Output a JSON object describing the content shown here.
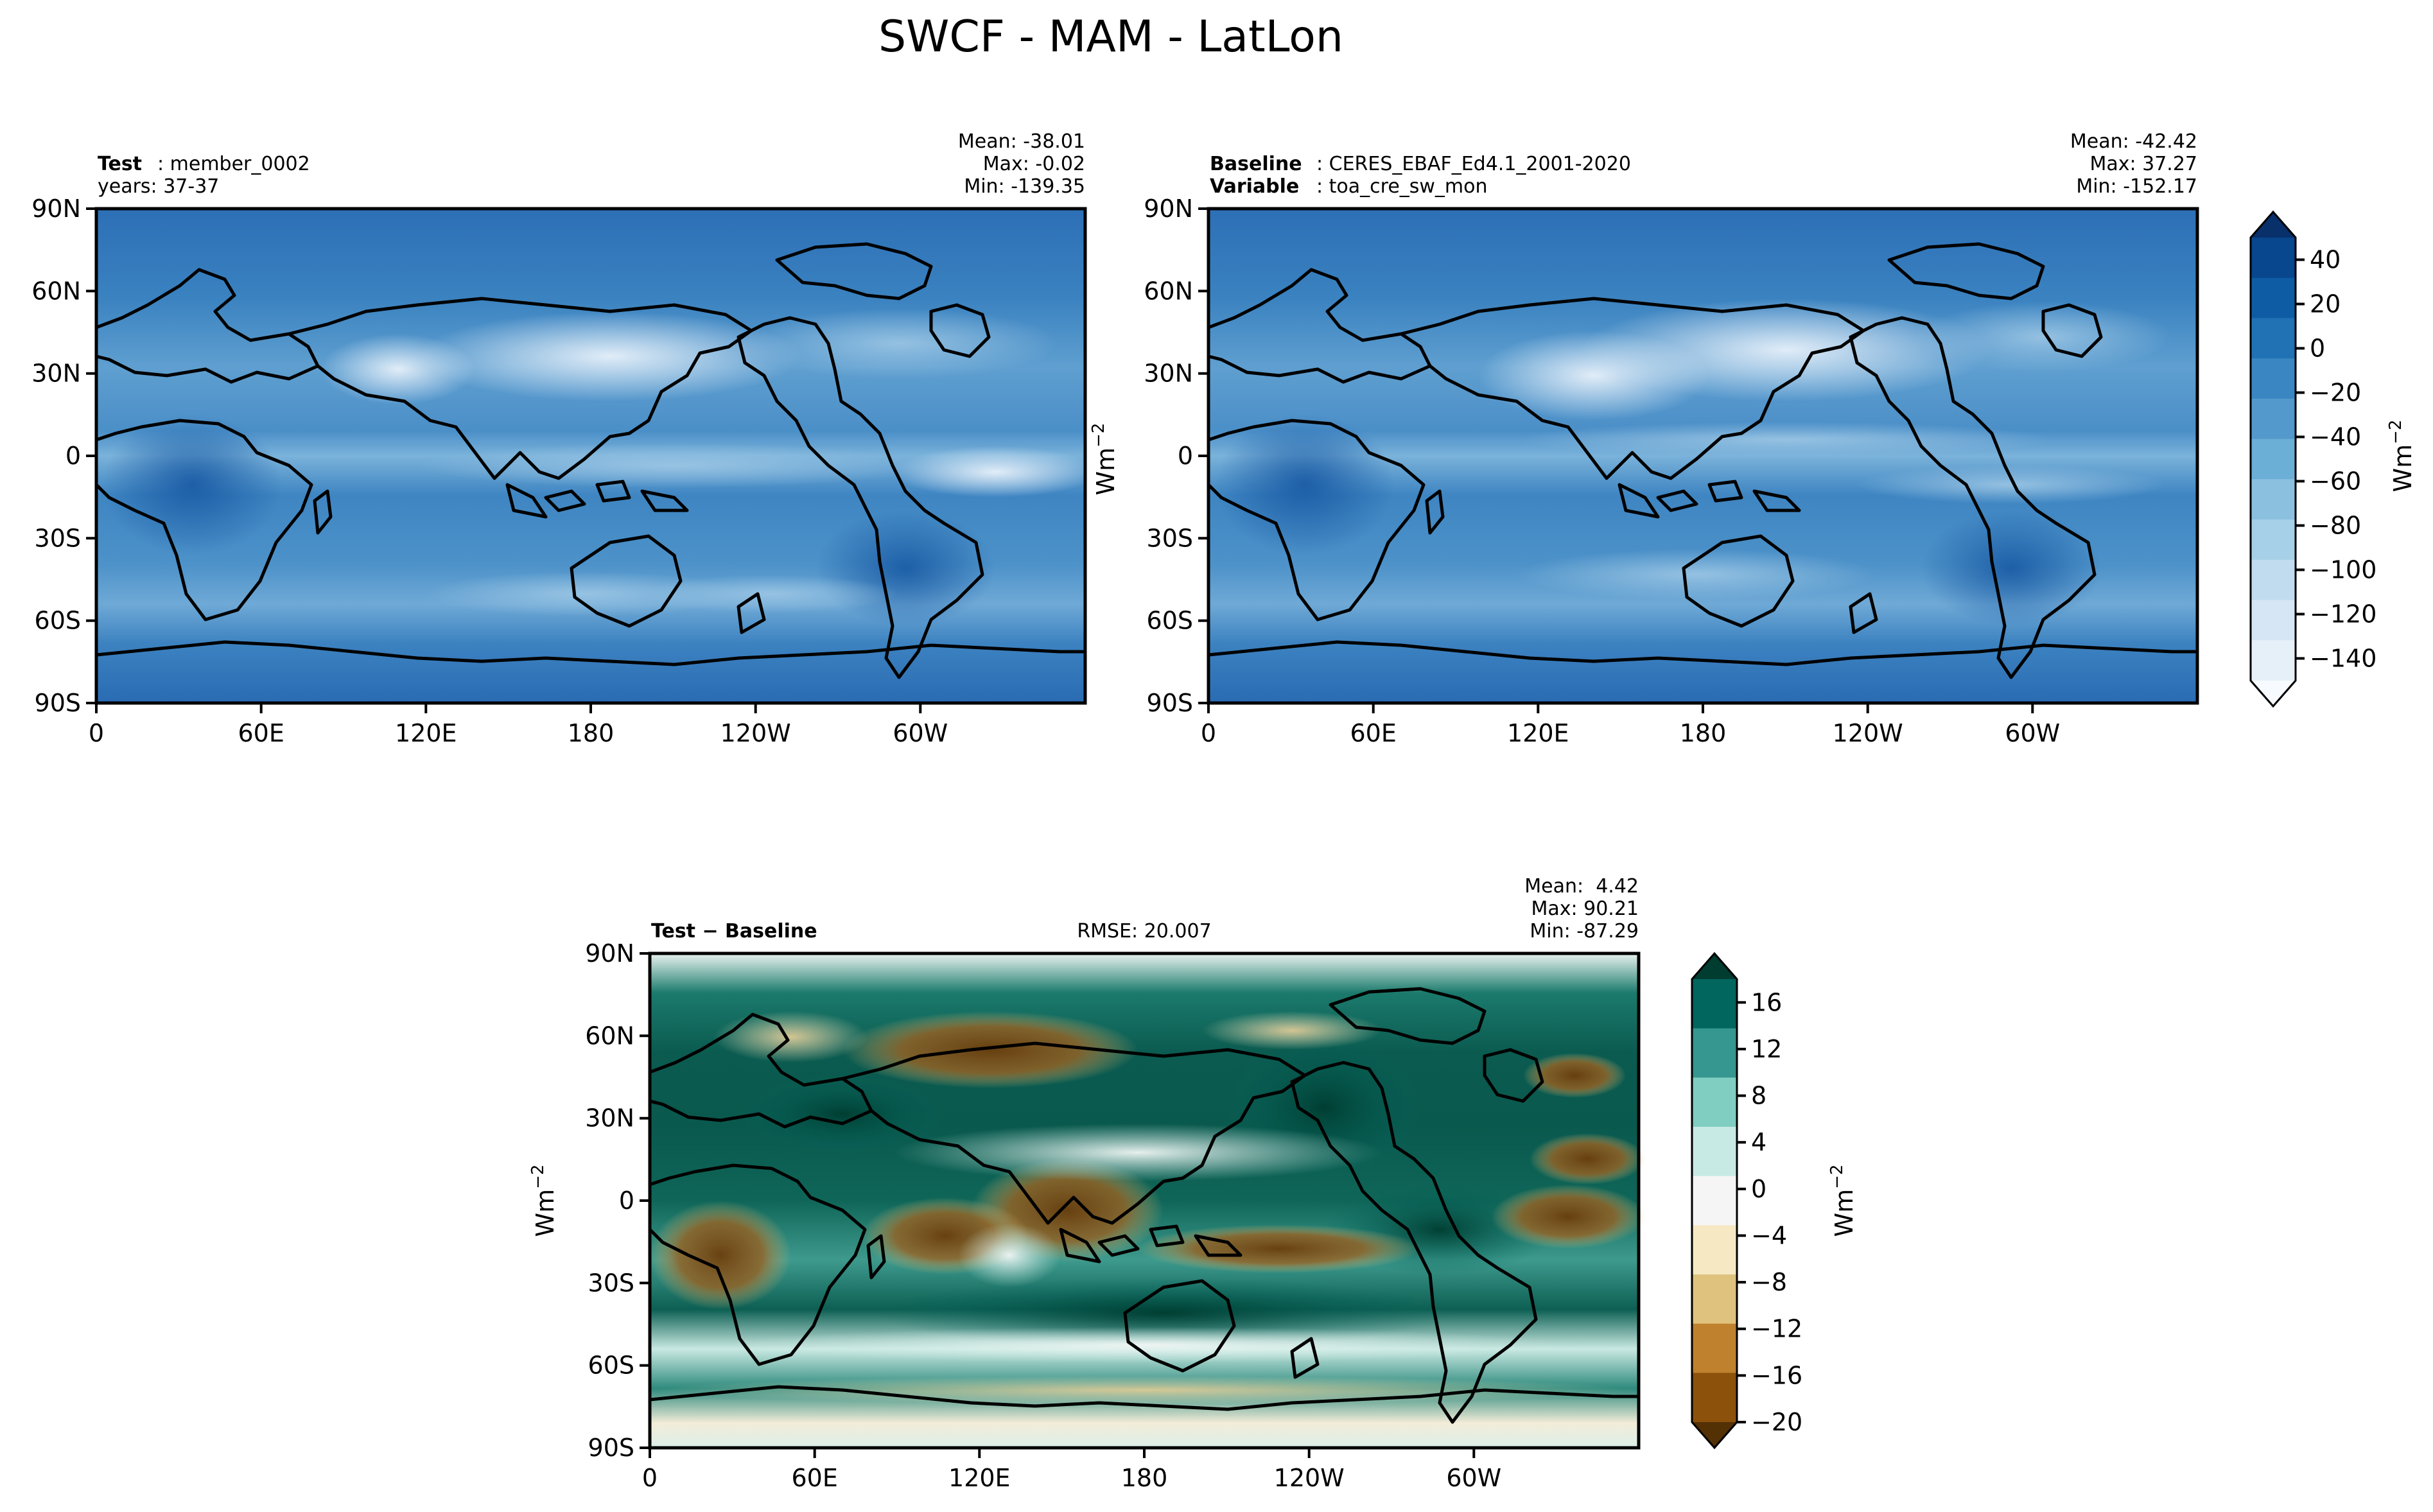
{
  "title": "SWCF - MAM - LatLon",
  "chart_data": [
    {
      "type": "map",
      "panel": "test",
      "label_bold": "Test",
      "label_rest": ": member_0002",
      "label2": "years: 37-37",
      "stats": [
        "Mean: -38.01",
        "Max: -0.02",
        "Min: -139.35"
      ],
      "mean": -38.01,
      "max": -0.02,
      "min": -139.35,
      "xticks": [
        "0",
        "60E",
        "120E",
        "180",
        "120W",
        "60W"
      ],
      "yticks": [
        "90N",
        "60N",
        "30N",
        "0",
        "30S",
        "60S",
        "90S"
      ],
      "colormap": "Blues_r",
      "xlim": [
        0,
        360
      ],
      "ylim": [
        -90,
        90
      ]
    },
    {
      "type": "map",
      "panel": "baseline",
      "label_bold": "Baseline",
      "label_rest": ": CERES_EBAF_Ed4.1_2001-2020",
      "label2_bold": "Variable",
      "label2_rest": ": toa_cre_sw_mon",
      "stats": [
        "Mean: -42.42",
        "Max: 37.27",
        "Min: -152.17"
      ],
      "mean": -42.42,
      "max": 37.27,
      "min": -152.17,
      "xticks": [
        "0",
        "60E",
        "120E",
        "180",
        "120W",
        "60W"
      ],
      "yticks": [
        "90N",
        "60N",
        "30N",
        "0",
        "30S",
        "60S",
        "90S"
      ],
      "colormap": "Blues_r",
      "xlim": [
        0,
        360
      ],
      "ylim": [
        -90,
        90
      ]
    },
    {
      "type": "map",
      "panel": "diff",
      "label_bold": "Test − Baseline",
      "rmse": "RMSE: 20.007",
      "stats": [
        "Mean:  4.42",
        "Max: 90.21",
        "Min: -87.29"
      ],
      "mean": 4.42,
      "max": 90.21,
      "min": -87.29,
      "xticks": [
        "0",
        "60E",
        "120E",
        "180",
        "120W",
        "60W"
      ],
      "yticks": [
        "90N",
        "60N",
        "30N",
        "0",
        "30S",
        "60S",
        "90S"
      ],
      "colormap": "BrBG",
      "xlim": [
        0,
        360
      ],
      "ylim": [
        -90,
        90
      ]
    }
  ],
  "colorbars": {
    "top": {
      "ticks": [
        "40",
        "20",
        "0",
        "−20",
        "−40",
        "−60",
        "−80",
        "−100",
        "−120",
        "−140"
      ],
      "tick_values": [
        40,
        20,
        0,
        -20,
        -40,
        -60,
        -80,
        -100,
        -120,
        -140
      ],
      "range": [
        -150,
        50
      ],
      "colors": [
        "#08306b",
        "#08468d",
        "#0e5ca4",
        "#2171b5",
        "#3a86c2",
        "#5399cb",
        "#6baed6",
        "#8cc0df",
        "#a6d0e7",
        "#c2dcef",
        "#d6e6f4",
        "#e6f0f9",
        "#f7fbff"
      ],
      "label": "Wm",
      "label_exp": "−2"
    },
    "diff": {
      "ticks": [
        "16",
        "12",
        "8",
        "4",
        "0",
        "−4",
        "−8",
        "−12",
        "−16",
        "−20"
      ],
      "tick_values": [
        16,
        12,
        8,
        4,
        0,
        -4,
        -8,
        -12,
        -16,
        -20
      ],
      "range": [
        -20,
        18
      ],
      "colors": [
        "#003c30",
        "#01665e",
        "#35978f",
        "#80cdc1",
        "#c7eae5",
        "#f5f5f5",
        "#f6e8c3",
        "#dfc27d",
        "#bf812d",
        "#8c510a",
        "#543005"
      ],
      "label": "Wm",
      "label_exp": "−2"
    }
  },
  "axis_unit": {
    "label": "Wm",
    "exp": "−2"
  },
  "colors": {
    "land_outline": "#000000",
    "blues_background": "#2f72b8",
    "diff_background": "#0c6b5c"
  }
}
